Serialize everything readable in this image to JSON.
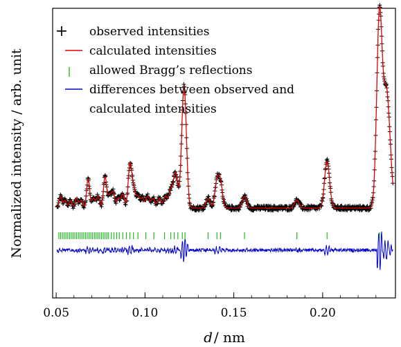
{
  "chart_data": {
    "type": "line",
    "title": "",
    "xlabel_var": "d",
    "xlabel_unit": "/ nm",
    "ylabel": "Normalized intensity / arb. unit",
    "xlim": [
      0.048,
      0.241
    ],
    "x_ticks": [
      "0.05",
      "0.10",
      "0.15",
      "0.20"
    ],
    "x_tick_values": [
      0.05,
      0.1,
      0.15,
      0.2
    ],
    "legend_position": "top-left",
    "legend": [
      {
        "marker": "+",
        "label": "observed intensities",
        "color": "#000000"
      },
      {
        "marker": "—",
        "label": "calculated intensities",
        "color": "#e60000"
      },
      {
        "marker": "|",
        "label": "allowed Bragg’s reflections",
        "color": "#22bb22"
      },
      {
        "marker": "—",
        "label": "differences between observed and",
        "label2": "calculated intensities",
        "color": "#0000cc"
      }
    ],
    "baseline": 0.0,
    "peaks": [
      {
        "d": 0.0525,
        "h": 0.06
      },
      {
        "d": 0.055,
        "h": 0.04
      },
      {
        "d": 0.058,
        "h": 0.04
      },
      {
        "d": 0.0615,
        "h": 0.05
      },
      {
        "d": 0.064,
        "h": 0.04
      },
      {
        "d": 0.068,
        "h": 0.15
      },
      {
        "d": 0.071,
        "h": 0.05
      },
      {
        "d": 0.0735,
        "h": 0.06
      },
      {
        "d": 0.0775,
        "h": 0.16
      },
      {
        "d": 0.08,
        "h": 0.06
      },
      {
        "d": 0.082,
        "h": 0.08
      },
      {
        "d": 0.085,
        "h": 0.05
      },
      {
        "d": 0.0875,
        "h": 0.07
      },
      {
        "d": 0.0915,
        "h": 0.22
      },
      {
        "d": 0.0935,
        "h": 0.1
      },
      {
        "d": 0.096,
        "h": 0.06
      },
      {
        "d": 0.0985,
        "h": 0.05
      },
      {
        "d": 0.1015,
        "h": 0.06
      },
      {
        "d": 0.1045,
        "h": 0.05
      },
      {
        "d": 0.108,
        "h": 0.05
      },
      {
        "d": 0.1115,
        "h": 0.06
      },
      {
        "d": 0.1145,
        "h": 0.09
      },
      {
        "d": 0.117,
        "h": 0.17
      },
      {
        "d": 0.119,
        "h": 0.05
      },
      {
        "d": 0.1215,
        "h": 0.44
      },
      {
        "d": 0.1228,
        "h": 0.3
      },
      {
        "d": 0.1355,
        "h": 0.05
      },
      {
        "d": 0.1405,
        "h": 0.13
      },
      {
        "d": 0.1425,
        "h": 0.12
      },
      {
        "d": 0.156,
        "h": 0.06
      },
      {
        "d": 0.1855,
        "h": 0.04
      },
      {
        "d": 0.2025,
        "h": 0.24
      },
      {
        "d": 0.232,
        "h": 1.0
      },
      {
        "d": 0.2355,
        "h": 0.46
      },
      {
        "d": 0.2375,
        "h": 0.25
      }
    ],
    "bragg_reflections_note": "positions only (green ticks)",
    "bragg_reflections": [
      0.0515,
      0.0525,
      0.0535,
      0.0545,
      0.0555,
      0.0565,
      0.0575,
      0.0585,
      0.0595,
      0.0605,
      0.0615,
      0.0625,
      0.0635,
      0.0645,
      0.0655,
      0.0665,
      0.0675,
      0.0685,
      0.0695,
      0.0705,
      0.0715,
      0.0725,
      0.0735,
      0.0745,
      0.0755,
      0.0765,
      0.0775,
      0.0785,
      0.0795,
      0.081,
      0.0825,
      0.084,
      0.0855,
      0.0875,
      0.0895,
      0.0915,
      0.0935,
      0.096,
      0.1005,
      0.105,
      0.111,
      0.1145,
      0.1165,
      0.1185,
      0.121,
      0.1225,
      0.1355,
      0.1405,
      0.1425,
      0.156,
      0.1855,
      0.2025,
      0.232
    ]
  }
}
